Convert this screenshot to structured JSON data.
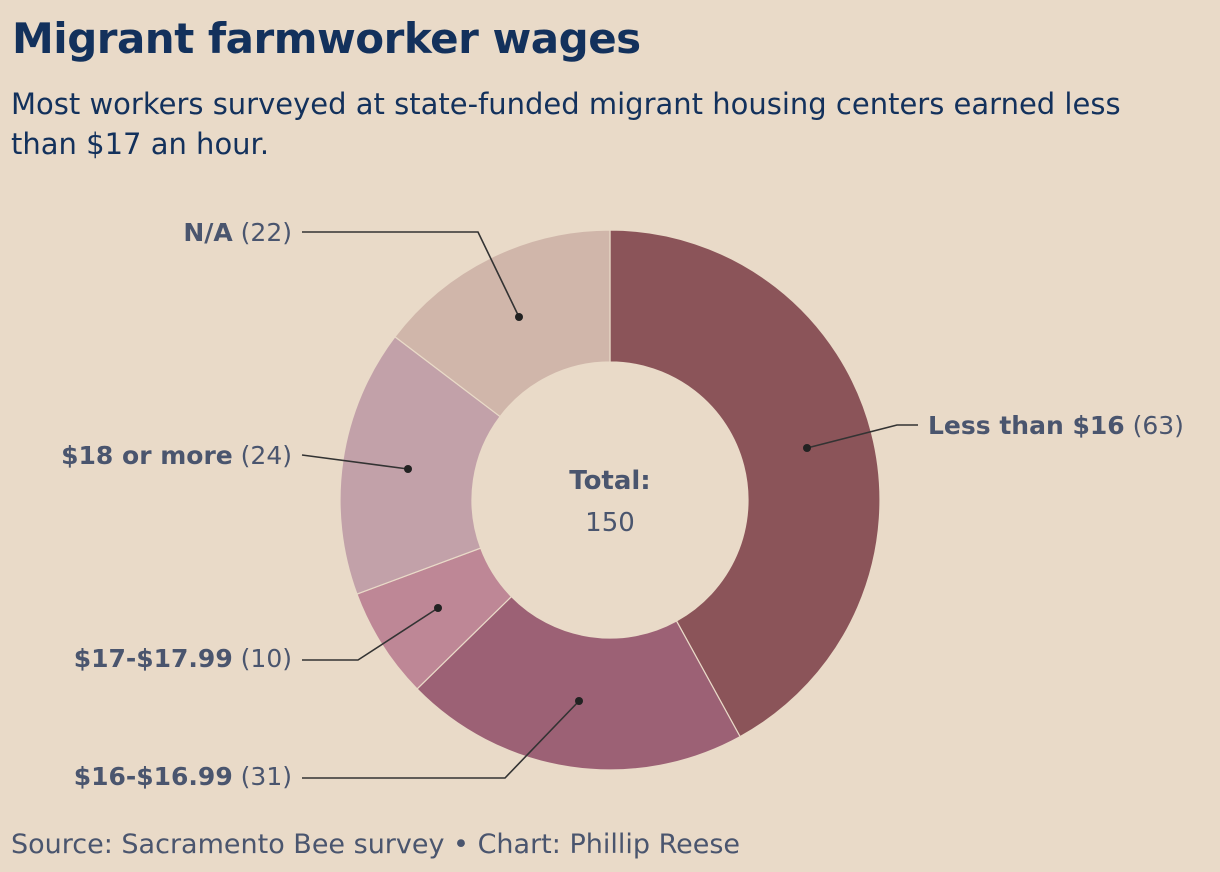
{
  "header": {
    "title": "Migrant farmworker wages",
    "subtitle": "Most workers surveyed at state-funded migrant housing centers earned less than $17 an hour."
  },
  "chart_data": {
    "type": "pie",
    "donut": true,
    "center_label": "Total:",
    "center_value": "150",
    "slices": [
      {
        "label": "Less than $16",
        "value": 63,
        "color": "#8b5459"
      },
      {
        "label": "$16-$16.99",
        "value": 31,
        "color": "#9c6175"
      },
      {
        "label": "$17-$17.99",
        "value": 10,
        "color": "#be8796"
      },
      {
        "label": "$18 or more",
        "value": 24,
        "color": "#c2a1a9"
      },
      {
        "label": "N/A",
        "value": 22,
        "color": "#d0b6aa"
      }
    ]
  },
  "footer": {
    "source": "Source: Sacramento Bee survey • Chart: Phillip Reese"
  }
}
